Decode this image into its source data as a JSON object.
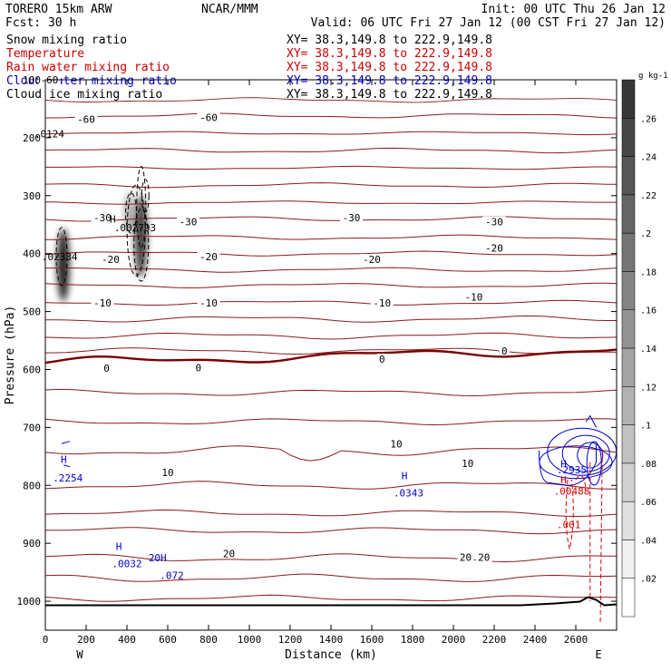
{
  "header": {
    "model": "TORERO  15km ARW",
    "org": "NCAR/MMM",
    "init": "Init: 00 UTC Thu 26 Jan 12",
    "fcst": "Fcst:   30 h",
    "valid": "Valid: 06 UTC Fri 27 Jan 12 (00 CST Fri 27 Jan 12)"
  },
  "fields": [
    {
      "name": "Snow mixing ratio",
      "xy": "XY=  38.3,149.8 to 222.9,149.8",
      "color": "#000000"
    },
    {
      "name": "Temperature",
      "xy": "XY=  38.3,149.8 to 222.9,149.8",
      "color": "#cc0000"
    },
    {
      "name": "Rain water mixing ratio",
      "xy": "XY=  38.3,149.8 to 222.9,149.8",
      "color": "#cc0000"
    },
    {
      "name": "Cloud water mixing ratio",
      "xy": "XY=  38.3,149.8 to 222.9,149.8",
      "color": "#0000cc"
    },
    {
      "name": "Cloud ice mixing ratio",
      "xy": "XY=  38.3,149.8 to 222.9,149.8",
      "color": "#000000"
    }
  ],
  "colors": {
    "temperature": "#8b1a1a",
    "freezing": "#7a0000",
    "rain": "#dd0000",
    "cloud_water": "#0000cc",
    "ice": "#000000",
    "terrain": "#000000"
  },
  "chart_data": {
    "type": "cross-section",
    "xlabel": "Distance (km)",
    "ylabel": "Pressure (hPa)",
    "xlim": [
      0,
      2800
    ],
    "ylim": [
      1050,
      100
    ],
    "x_ticks": [
      0,
      200,
      400,
      600,
      800,
      1000,
      1200,
      1400,
      1600,
      1800,
      2000,
      2200,
      2400,
      2600
    ],
    "y_ticks": [
      100,
      200,
      300,
      400,
      500,
      600,
      700,
      800,
      900,
      1000
    ],
    "x_end_labels": [
      "W",
      "E"
    ],
    "colorbar": {
      "unit": "g kg-1",
      "ticks": [
        ".02",
        ".04",
        ".06",
        ".08",
        ".1",
        ".12",
        ".14",
        ".16",
        ".18",
        ".2",
        ".22",
        ".24",
        ".26"
      ],
      "min": 0,
      "max": 0.28
    },
    "isotherm_labels": [
      {
        "x": 20,
        "p": 100,
        "text": "-60"
      },
      {
        "x": 200,
        "p": 168,
        "text": "-60"
      },
      {
        "x": 800,
        "p": 165,
        "text": "-60"
      },
      {
        "x": 280,
        "p": 338,
        "text": "-30"
      },
      {
        "x": 700,
        "p": 345,
        "text": "-30"
      },
      {
        "x": 1500,
        "p": 338,
        "text": "-30"
      },
      {
        "x": 2200,
        "p": 345,
        "text": "-30"
      },
      {
        "x": 320,
        "p": 410,
        "text": "-20"
      },
      {
        "x": 800,
        "p": 405,
        "text": "-20"
      },
      {
        "x": 1600,
        "p": 410,
        "text": "-20"
      },
      {
        "x": 2200,
        "p": 390,
        "text": "-20"
      },
      {
        "x": 280,
        "p": 485,
        "text": "-10"
      },
      {
        "x": 800,
        "p": 485,
        "text": "-10"
      },
      {
        "x": 1650,
        "p": 485,
        "text": "-10"
      },
      {
        "x": 2100,
        "p": 475,
        "text": "-10"
      },
      {
        "x": 300,
        "p": 598,
        "text": "0"
      },
      {
        "x": 750,
        "p": 597,
        "text": "0"
      },
      {
        "x": 1650,
        "p": 582,
        "text": "0"
      },
      {
        "x": 2250,
        "p": 568,
        "text": "0"
      },
      {
        "x": 600,
        "p": 778,
        "text": "10"
      },
      {
        "x": 1720,
        "p": 728,
        "text": "10"
      },
      {
        "x": 2070,
        "p": 762,
        "text": "10"
      },
      {
        "x": 900,
        "p": 918,
        "text": "20"
      },
      {
        "x": 2060,
        "p": 924,
        "text": "20"
      },
      {
        "x": 2150,
        "p": 924,
        "text": "20"
      }
    ],
    "max_labels": [
      {
        "x": 20,
        "p": 193,
        "text": ".0124",
        "color": "#000000"
      },
      {
        "x": 440,
        "p": 355,
        "text": ".002793",
        "color": "#000000"
      },
      {
        "x": 330,
        "p": 340,
        "text": "H",
        "color": "#000000"
      },
      {
        "x": 70,
        "p": 405,
        "text": ".02334",
        "color": "#000000"
      },
      {
        "x": 90,
        "p": 755,
        "text": "H",
        "color": "#0000cc"
      },
      {
        "x": 110,
        "p": 787,
        "text": ".2254",
        "color": "#0000cc"
      },
      {
        "x": 1760,
        "p": 783,
        "text": "H",
        "color": "#0000cc"
      },
      {
        "x": 1780,
        "p": 813,
        "text": ".0343",
        "color": "#0000cc"
      },
      {
        "x": 360,
        "p": 905,
        "text": "H",
        "color": "#0000cc"
      },
      {
        "x": 400,
        "p": 935,
        "text": ".0032",
        "color": "#0000cc"
      },
      {
        "x": 550,
        "p": 925,
        "text": "20H",
        "color": "#0000cc"
      },
      {
        "x": 620,
        "p": 955,
        "text": ".072",
        "color": "#0000cc"
      },
      {
        "x": 2540,
        "p": 763,
        "text": "H",
        "color": "#0000cc"
      },
      {
        "x": 2580,
        "p": 773,
        "text": ".2935",
        "color": "#0000cc"
      },
      {
        "x": 2540,
        "p": 790,
        "text": "H",
        "color": "#dd0000"
      },
      {
        "x": 2580,
        "p": 810,
        "text": ".00488",
        "color": "#dd0000"
      },
      {
        "x": 2565,
        "p": 868,
        "text": ".001",
        "color": "#dd0000"
      }
    ]
  }
}
